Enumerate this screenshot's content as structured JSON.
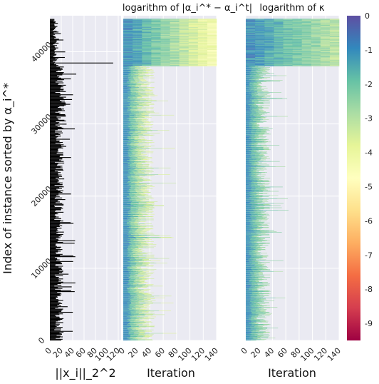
{
  "chart_data": [
    {
      "type": "bar",
      "orientation": "horizontal",
      "xlabel": "||x_i||_2^2",
      "ylabel": "Index of instance sorted by α_i^*",
      "xlim": [
        0,
        125
      ],
      "ylim": [
        0,
        45000
      ],
      "xticks": [
        "0",
        "20",
        "40",
        "60",
        "80",
        "100",
        "120"
      ],
      "yticks": [
        "0",
        "10000",
        "20000",
        "30000",
        "40000"
      ],
      "grid": true,
      "bands": [
        {
          "y_from": 0,
          "y_to": 10000,
          "typical": 15,
          "max": 55
        },
        {
          "y_from": 10000,
          "y_to": 20000,
          "typical": 15,
          "max": 45
        },
        {
          "y_from": 20000,
          "y_to": 30000,
          "typical": 16,
          "max": 40
        },
        {
          "y_from": 30000,
          "y_to": 38000,
          "typical": 18,
          "max": 55
        },
        {
          "y_from": 38000,
          "y_to": 44500,
          "typical": 10,
          "max": 120
        }
      ]
    },
    {
      "type": "heatmap",
      "title": "logarithm of |α_i^* − α_i^t|",
      "xlabel": "Iteration",
      "xlim": [
        0,
        140
      ],
      "xticks": [
        "0",
        "20",
        "40",
        "60",
        "80",
        "100",
        "120",
        "140"
      ],
      "ylim": [
        0,
        45000
      ],
      "dense_region": {
        "y_from": 38000,
        "y_to": 44500,
        "iterations": [
          0,
          140
        ]
      },
      "typical_trace_length": {
        "y_0_38000": [
          20,
          80
        ]
      },
      "color_range": [
        -9.5,
        0
      ]
    },
    {
      "type": "heatmap",
      "title": "logarithm of κ",
      "xlabel": "Iteration",
      "xlim": [
        0,
        140
      ],
      "xticks": [
        "0",
        "20",
        "40",
        "60",
        "80",
        "100",
        "120",
        "140"
      ],
      "ylim": [
        0,
        45000
      ],
      "dense_region": {
        "y_from": 38000,
        "y_to": 44500,
        "iterations": [
          0,
          140
        ]
      },
      "typical_trace_length": {
        "y_0_38000": [
          15,
          65
        ]
      },
      "color_range": [
        -9.5,
        0
      ]
    }
  ],
  "colorbar": {
    "ticks": [
      "0",
      "-1",
      "-2",
      "-3",
      "-4",
      "-5",
      "-6",
      "-7",
      "-8",
      "-9"
    ],
    "colors": [
      "#5e4fa2",
      "#3288bd",
      "#66c2a5",
      "#abdda4",
      "#e6f598",
      "#ffffbf",
      "#fee08b",
      "#fdae61",
      "#f46d43",
      "#d53e4f",
      "#9e0142"
    ]
  },
  "colors": {
    "panel_bg": "#eaeaf2",
    "grid": "#ffffff",
    "bars": "#000000"
  }
}
